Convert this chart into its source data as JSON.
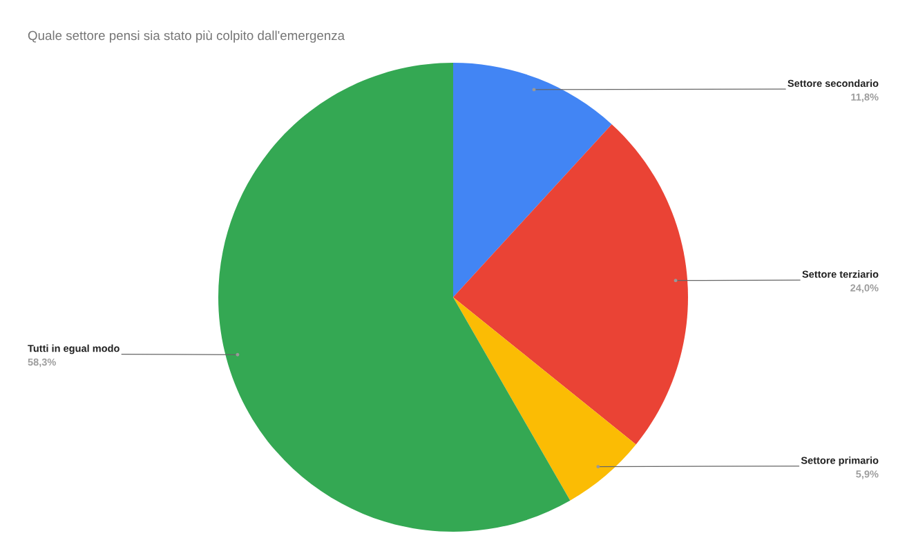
{
  "chart_data": {
    "type": "pie",
    "title": "Quale settore pensi sia stato più colpito dall'emergenza",
    "categories": [
      "Settore secondario",
      "Settore terziario",
      "Settore primario",
      "Tutti in egual modo"
    ],
    "values": [
      11.8,
      24.0,
      5.9,
      58.3
    ],
    "value_labels": [
      "11,8%",
      "24,0%",
      "5,9%",
      "58,3%"
    ],
    "colors": [
      "#4285f4",
      "#ea4335",
      "#fbbc04",
      "#34a853"
    ],
    "legend": false
  }
}
